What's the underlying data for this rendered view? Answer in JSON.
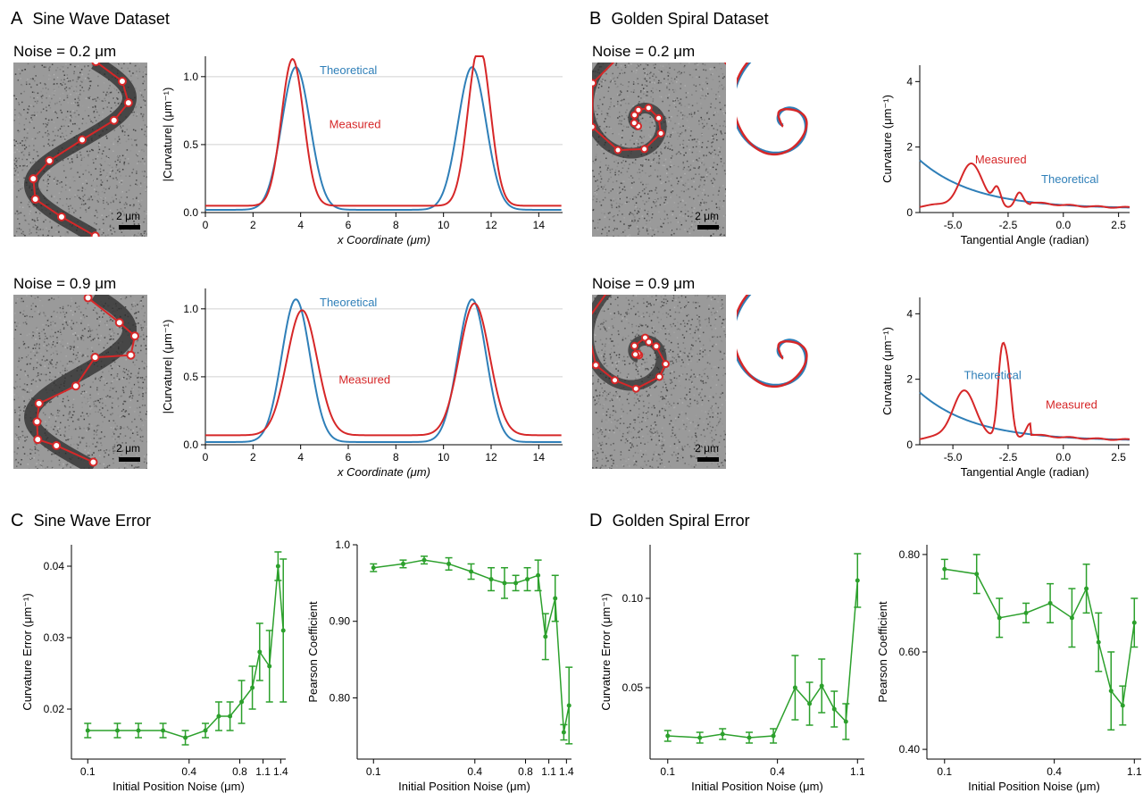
{
  "colors": {
    "theoretical": "#2f7fb8",
    "measured": "#d62728",
    "green": "#2ca02c",
    "grid": "#d0d0d0",
    "axis": "#000000",
    "bg": "#ffffff",
    "noise_bg": "#9a9a9a",
    "marker_fill": "#ffffff"
  },
  "fonts": {
    "panel_label_size": 20,
    "panel_title_size": 18,
    "noise_label_size": 17,
    "tick_size": 12,
    "axis_label_size": 13
  },
  "panelA": {
    "label": "A",
    "title": "Sine Wave Dataset",
    "rows": [
      {
        "noise_label": "Noise = 0.2 μm",
        "scale": "2 μm",
        "sine_image": {
          "amplitude": 55,
          "period": 195,
          "stroke_width": 16,
          "n_markers": 10,
          "marker_jitter": 4
        },
        "chart": {
          "xlim": [
            0,
            15
          ],
          "ylim": [
            0,
            1.15
          ],
          "xticks": [
            0,
            2,
            4,
            6,
            8,
            10,
            12,
            14
          ],
          "yticks": [
            0.0,
            0.5,
            1.0
          ],
          "xlabel": "x Coordinate (μm)",
          "ylabel": "|Curvature| (μm⁻¹)",
          "legend": {
            "theoretical": "Theoretical",
            "measured": "Measured"
          },
          "theoretical": {
            "peaks_x": [
              3.8,
              11.2
            ],
            "peak_height": 1.05,
            "width": 1.4,
            "base": 0.02
          },
          "measured": {
            "peaks_x": [
              3.6,
              11.5
            ],
            "peak_height": [
              1.08,
              1.18
            ],
            "width": 1.1,
            "base": 0.05,
            "asym": 0.3
          }
        }
      },
      {
        "noise_label": "Noise = 0.9 μm",
        "scale": "2 μm",
        "sine_image": {
          "amplitude": 55,
          "period": 195,
          "stroke_width": 16,
          "n_markers": 11,
          "marker_jitter": 25
        },
        "chart": {
          "xlim": [
            0,
            15
          ],
          "ylim": [
            0,
            1.15
          ],
          "xticks": [
            0,
            2,
            4,
            6,
            8,
            10,
            12,
            14
          ],
          "yticks": [
            0.0,
            0.5,
            1.0
          ],
          "xlabel": "x Coordinate (μm)",
          "ylabel": "|Curvature| (μm⁻¹)",
          "legend": {
            "theoretical": "Theoretical",
            "measured": "Measured"
          },
          "theoretical": {
            "peaks_x": [
              3.8,
              11.2
            ],
            "peak_height": 1.05,
            "width": 1.4,
            "base": 0.02
          },
          "measured": {
            "peaks_x": [
              4.1,
              11.3
            ],
            "peak_height": [
              0.92,
              0.97
            ],
            "width": 1.5,
            "base": 0.07,
            "asym": -0.2
          }
        }
      }
    ]
  },
  "panelB": {
    "label": "B",
    "title": "Golden Spiral Dataset",
    "rows": [
      {
        "noise_label": "Noise = 0.2 μm",
        "scale": "2 μm",
        "spiral": {
          "a": 6,
          "b": 0.306,
          "turns": 2.3,
          "n_markers": 18,
          "jitter": 3
        },
        "chart": {
          "xlim": [
            -6.5,
            3.0
          ],
          "ylim": [
            0,
            4.5
          ],
          "xticks": [
            -5.0,
            -2.5,
            0.0,
            2.5
          ],
          "yticks": [
            0,
            2,
            4
          ],
          "xlabel": "Tangential Angle (radian)",
          "ylabel": "Curvature (μm⁻¹)",
          "legend": {
            "theoretical": "Theoretical",
            "measured": "Measured"
          },
          "theoretical_decay": {
            "start": 1.6,
            "end": 0.12,
            "tau": 2.5
          },
          "measured_wobble": {
            "base_match": true,
            "bump_x": -4.2,
            "bump_h": 1.3,
            "wiggles": [
              [
                -3.0,
                0.55
              ],
              [
                -2.0,
                0.4
              ]
            ]
          }
        }
      },
      {
        "noise_label": "Noise = 0.9 μm",
        "scale": "2 μm",
        "spiral": {
          "a": 6,
          "b": 0.306,
          "turns": 2.3,
          "n_markers": 22,
          "jitter": 10
        },
        "chart": {
          "xlim": [
            -6.5,
            3.0
          ],
          "ylim": [
            0,
            4.5
          ],
          "xticks": [
            -5.0,
            -2.5,
            0.0,
            2.5
          ],
          "yticks": [
            0,
            2,
            4
          ],
          "xlabel": "Tangential Angle (radian)",
          "ylabel": "Curvature (μm⁻¹)",
          "legend": {
            "theoretical": "Theoretical",
            "measured": "Measured"
          },
          "theoretical_decay": {
            "start": 1.6,
            "end": 0.12,
            "tau": 2.5
          },
          "measured_wobble": {
            "base_match": true,
            "bump_x": -4.5,
            "bump_h": 1.5,
            "wiggles": [
              [
                -2.8,
                2.4
              ],
              [
                -2.5,
                1.8
              ],
              [
                -1.5,
                0.4
              ]
            ]
          }
        }
      }
    ]
  },
  "panelC": {
    "label": "C",
    "title": "Sine Wave Error",
    "left": {
      "xlim": [
        0.08,
        1.5
      ],
      "ylim": [
        0.013,
        0.043
      ],
      "xticks": [
        0.1,
        0.4,
        0.8,
        1.1,
        1.4
      ],
      "ytick_vals": [
        0.02,
        0.03,
        0.04
      ],
      "xlabel": "Initial Position Noise (μm)",
      "ylabel": "Curvature Error (μm⁻¹)",
      "xscale": "log",
      "points": [
        [
          0.1,
          0.017,
          0.001
        ],
        [
          0.15,
          0.017,
          0.001
        ],
        [
          0.2,
          0.017,
          0.001
        ],
        [
          0.28,
          0.017,
          0.001
        ],
        [
          0.38,
          0.016,
          0.001
        ],
        [
          0.5,
          0.017,
          0.001
        ],
        [
          0.6,
          0.019,
          0.002
        ],
        [
          0.7,
          0.019,
          0.002
        ],
        [
          0.82,
          0.021,
          0.003
        ],
        [
          0.95,
          0.023,
          0.003
        ],
        [
          1.05,
          0.028,
          0.004
        ],
        [
          1.2,
          0.026,
          0.005
        ],
        [
          1.35,
          0.04,
          0.002
        ],
        [
          1.45,
          0.031,
          0.01
        ]
      ]
    },
    "right": {
      "xlim": [
        0.08,
        1.5
      ],
      "ylim": [
        0.72,
        1.0
      ],
      "xticks": [
        0.1,
        0.4,
        0.8,
        1.1,
        1.4
      ],
      "ytick_vals": [
        0.8,
        0.9,
        1.0
      ],
      "xlabel": "Initial Position Noise (μm)",
      "ylabel": "Pearson Coefficient",
      "xscale": "log",
      "points": [
        [
          0.1,
          0.97,
          0.005
        ],
        [
          0.15,
          0.975,
          0.005
        ],
        [
          0.2,
          0.98,
          0.005
        ],
        [
          0.28,
          0.975,
          0.008
        ],
        [
          0.38,
          0.965,
          0.01
        ],
        [
          0.5,
          0.955,
          0.015
        ],
        [
          0.6,
          0.95,
          0.02
        ],
        [
          0.7,
          0.95,
          0.01
        ],
        [
          0.82,
          0.955,
          0.015
        ],
        [
          0.95,
          0.96,
          0.02
        ],
        [
          1.05,
          0.88,
          0.03
        ],
        [
          1.2,
          0.93,
          0.03
        ],
        [
          1.35,
          0.755,
          0.01
        ],
        [
          1.45,
          0.79,
          0.05
        ]
      ]
    }
  },
  "panelD": {
    "label": "D",
    "title": "Golden Spiral Error",
    "left": {
      "xlim": [
        0.08,
        1.2
      ],
      "ylim": [
        0.01,
        0.13
      ],
      "xticks": [
        0.1,
        0.4,
        1.1
      ],
      "ytick_vals": [
        0.05,
        0.1
      ],
      "xlabel": "Initial Position Noise (μm)",
      "ylabel": "Curvature Error (μm⁻¹)",
      "xscale": "log",
      "points": [
        [
          0.1,
          0.023,
          0.003
        ],
        [
          0.15,
          0.022,
          0.003
        ],
        [
          0.2,
          0.024,
          0.003
        ],
        [
          0.28,
          0.022,
          0.003
        ],
        [
          0.38,
          0.023,
          0.004
        ],
        [
          0.5,
          0.05,
          0.018
        ],
        [
          0.6,
          0.041,
          0.012
        ],
        [
          0.7,
          0.051,
          0.015
        ],
        [
          0.82,
          0.038,
          0.01
        ],
        [
          0.95,
          0.031,
          0.01
        ],
        [
          1.1,
          0.11,
          0.015
        ]
      ]
    },
    "right": {
      "xlim": [
        0.08,
        1.2
      ],
      "ylim": [
        0.38,
        0.82
      ],
      "xticks": [
        0.1,
        0.4,
        1.1
      ],
      "ytick_vals": [
        0.4,
        0.6,
        0.8
      ],
      "xlabel": "Initial Position Noise (μm)",
      "ylabel": "Pearson Coefficient",
      "xscale": "log",
      "points": [
        [
          0.1,
          0.77,
          0.02
        ],
        [
          0.15,
          0.76,
          0.04
        ],
        [
          0.2,
          0.67,
          0.04
        ],
        [
          0.28,
          0.68,
          0.02
        ],
        [
          0.38,
          0.7,
          0.04
        ],
        [
          0.5,
          0.67,
          0.06
        ],
        [
          0.6,
          0.73,
          0.05
        ],
        [
          0.7,
          0.62,
          0.06
        ],
        [
          0.82,
          0.52,
          0.08
        ],
        [
          0.95,
          0.49,
          0.04
        ],
        [
          1.1,
          0.66,
          0.05
        ]
      ]
    }
  }
}
